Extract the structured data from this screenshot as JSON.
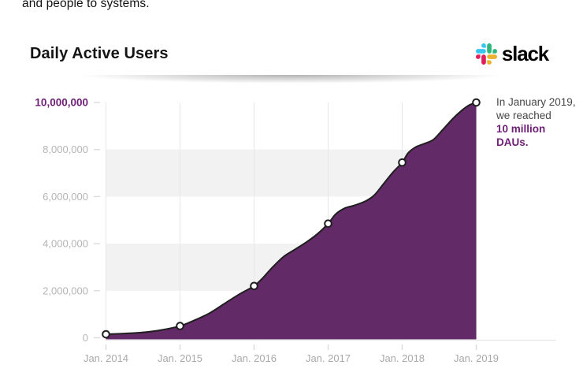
{
  "page": {
    "top_partial_text": "and people to systems."
  },
  "header": {
    "title": "Daily Active Users",
    "brand": "slack"
  },
  "annotation": {
    "line1": "In January 2019,",
    "line2": "we reached",
    "line3": "10 million",
    "line4": "DAUs."
  },
  "colors": {
    "area_fill": "#5C2161",
    "curve_line": "#1f1f1f",
    "accent_purple": "#6E2077",
    "band_gray": "#f2f2f2",
    "gridline": "#e7e7e7",
    "axis_line": "#e2e2e2",
    "tick_dash": "#dddddd",
    "y_label_gray": "#b5b5b5",
    "x_label_gray": "#a9a9a9",
    "annotation_gray": "#474747",
    "slack_blue": "#36C5F0",
    "slack_green": "#2EB67D",
    "slack_red": "#E01E5A",
    "slack_yellow": "#ECB22E"
  },
  "chart_data": {
    "type": "area",
    "title": "Daily Active Users",
    "xlabel": "",
    "ylabel": "Daily Active Users",
    "ylim_millions": [
      0,
      10
    ],
    "grid": "horizontal-bands-and-vertical-lines",
    "legend": "none",
    "x_tick_labels": [
      "Jan. 2014",
      "Jan. 2015",
      "Jan. 2016",
      "Jan. 2017",
      "Jan. 2018",
      "Jan. 2019"
    ],
    "x_tick_years": [
      2014,
      2015,
      2016,
      2017,
      2018,
      2019
    ],
    "y_ticks": [
      {
        "v": 0,
        "label": "0",
        "accent": false
      },
      {
        "v": 2,
        "label": "2,000,000",
        "accent": false
      },
      {
        "v": 4,
        "label": "4,000,000",
        "accent": false
      },
      {
        "v": 6,
        "label": "6,000,000",
        "accent": false
      },
      {
        "v": 8,
        "label": "8,000,000",
        "accent": false
      },
      {
        "v": 10,
        "label": "10,000,000",
        "accent": true
      }
    ],
    "bands_millions": [
      [
        2,
        4
      ],
      [
        6,
        8
      ]
    ],
    "milestones": [
      {
        "label": "Jan. 2014",
        "year": 2014,
        "dau": 150000
      },
      {
        "label": "Jan. 2015",
        "year": 2015,
        "dau": 500000
      },
      {
        "label": "Jan. 2016",
        "year": 2016,
        "dau": 2200000
      },
      {
        "label": "Jan. 2017",
        "year": 2017,
        "dau": 4850000
      },
      {
        "label": "Jan. 2018",
        "year": 2018,
        "dau": 7450000
      },
      {
        "label": "Jan. 2019",
        "year": 2019,
        "dau": 10000000
      }
    ],
    "curve_points_year_millions": [
      [
        2014.0,
        0.15
      ],
      [
        2014.25,
        0.18
      ],
      [
        2014.5,
        0.23
      ],
      [
        2014.75,
        0.33
      ],
      [
        2015.0,
        0.5
      ],
      [
        2015.2,
        0.75
      ],
      [
        2015.4,
        1.05
      ],
      [
        2015.6,
        1.45
      ],
      [
        2015.8,
        1.85
      ],
      [
        2016.0,
        2.2
      ],
      [
        2016.12,
        2.55
      ],
      [
        2016.25,
        3.0
      ],
      [
        2016.4,
        3.45
      ],
      [
        2016.55,
        3.75
      ],
      [
        2016.7,
        4.05
      ],
      [
        2016.85,
        4.4
      ],
      [
        2017.0,
        4.85
      ],
      [
        2017.1,
        5.25
      ],
      [
        2017.22,
        5.5
      ],
      [
        2017.35,
        5.62
      ],
      [
        2017.5,
        5.8
      ],
      [
        2017.62,
        6.05
      ],
      [
        2017.75,
        6.55
      ],
      [
        2017.88,
        7.05
      ],
      [
        2018.0,
        7.45
      ],
      [
        2018.08,
        7.85
      ],
      [
        2018.18,
        8.1
      ],
      [
        2018.3,
        8.25
      ],
      [
        2018.42,
        8.42
      ],
      [
        2018.55,
        8.85
      ],
      [
        2018.68,
        9.3
      ],
      [
        2018.8,
        9.65
      ],
      [
        2018.9,
        9.88
      ],
      [
        2019.0,
        10.0
      ]
    ],
    "annotation_text": "In January 2019, we reached 10 million DAUs."
  }
}
